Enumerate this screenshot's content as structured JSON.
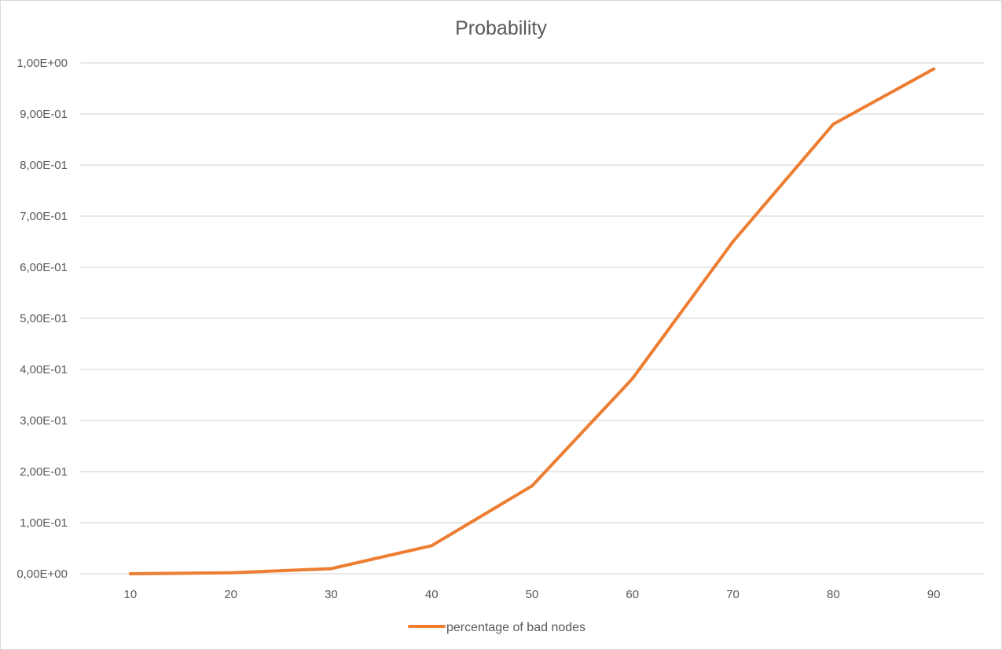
{
  "chart_data": {
    "type": "line",
    "title": "Probability",
    "xlabel": "",
    "ylabel": "",
    "categories": [
      "10",
      "20",
      "30",
      "40",
      "50",
      "60",
      "70",
      "80",
      "90"
    ],
    "series": [
      {
        "name": "percentage of bad nodes",
        "color": "#ED7D31",
        "values": [
          0.0,
          0.002,
          0.01,
          0.055,
          0.172,
          0.382,
          0.65,
          0.88,
          0.988
        ]
      }
    ],
    "ylim": [
      0,
      1
    ],
    "y_ticks": [
      {
        "value": 0.0,
        "label": "0,00E+00"
      },
      {
        "value": 0.1,
        "label": "1,00E-01"
      },
      {
        "value": 0.2,
        "label": "2,00E-01"
      },
      {
        "value": 0.3,
        "label": "3,00E-01"
      },
      {
        "value": 0.4,
        "label": "4,00E-01"
      },
      {
        "value": 0.5,
        "label": "5,00E-01"
      },
      {
        "value": 0.6,
        "label": "6,00E-01"
      },
      {
        "value": 0.7,
        "label": "7,00E-01"
      },
      {
        "value": 0.8,
        "label": "8,00E-01"
      },
      {
        "value": 0.9,
        "label": "9,00E-01"
      },
      {
        "value": 1.0,
        "label": "1,00E+00"
      }
    ],
    "grid": true,
    "legend_position": "bottom"
  }
}
